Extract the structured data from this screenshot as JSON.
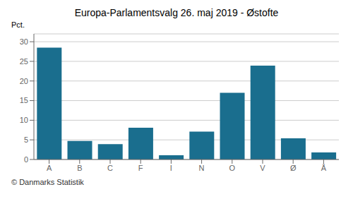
{
  "chart_data": {
    "type": "bar",
    "title": "Europa-Parlamentsvalg 26. maj 2019 - Østofte",
    "ylabel": "Pct.",
    "annotations": [
      "© Danmarks Statistik"
    ],
    "categories": [
      "A",
      "B",
      "C",
      "F",
      "I",
      "N",
      "O",
      "V",
      "Ø",
      "Å"
    ],
    "values": [
      28.5,
      4.7,
      3.9,
      8.1,
      1.1,
      7.1,
      17.0,
      23.9,
      5.4,
      1.8
    ],
    "color": "#1a6e8e",
    "ylim": [
      0,
      32
    ],
    "yticks": [
      0,
      5,
      10,
      15,
      20,
      25,
      30
    ],
    "grid": true
  }
}
